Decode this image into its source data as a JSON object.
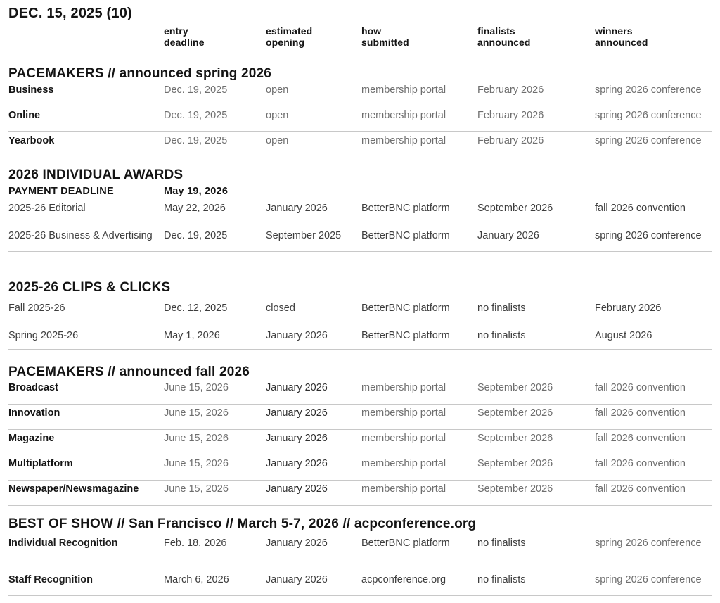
{
  "meta": {
    "title": "DEC. 15, 2025 (10)"
  },
  "header": {
    "columns": [
      {
        "label": "entry\ndeadline"
      },
      {
        "label": "estimated\nopening"
      },
      {
        "label": "how\nsubmitted"
      },
      {
        "label": "finalists\nannounced"
      },
      {
        "label": "winners\nannounced"
      }
    ]
  },
  "sections": [
    {
      "heading": "PACEMAKERS // announced spring 2026",
      "rows": [
        {
          "label": "Business",
          "entry_deadline": "Dec. 19, 2025",
          "estimated_opening": "open",
          "how_submitted": "membership portal",
          "finalists_announced": "February 2026",
          "winners_announced": "spring 2026 conference"
        },
        {
          "label": "Online",
          "entry_deadline": "Dec. 19, 2025",
          "estimated_opening": "open",
          "how_submitted": "membership portal",
          "finalists_announced": "February 2026",
          "winners_announced": "spring 2026 conference"
        },
        {
          "label": "Yearbook",
          "entry_deadline": "Dec. 19, 2025",
          "estimated_opening": "open",
          "how_submitted": "membership portal",
          "finalists_announced": "February 2026",
          "winners_announced": "spring 2026 conference"
        }
      ]
    },
    {
      "heading": "2026 INDIVIDUAL AWARDS",
      "payment_label": "PAYMENT DEADLINE",
      "payment_value": "May 19, 2026",
      "rows": [
        {
          "label": "2025-26  Editorial",
          "entry_deadline": "May 22, 2026",
          "estimated_opening": "January 2026",
          "how_submitted": "BetterBNC platform",
          "finalists_announced": "September 2026",
          "winners_announced": "fall 2026 convention"
        },
        {
          "label": "2025-26 Business & Advertising",
          "entry_deadline": "Dec. 19, 2025",
          "estimated_opening": "September 2025",
          "how_submitted": "BetterBNC platform",
          "finalists_announced": "January 2026",
          "winners_announced": "spring 2026 conference"
        }
      ]
    },
    {
      "heading": "2025-26 CLIPS & CLICKS",
      "rows": [
        {
          "label": "Fall 2025-26",
          "entry_deadline": "Dec. 12, 2025",
          "estimated_opening": "closed",
          "how_submitted": "BetterBNC platform",
          "finalists_announced": "no finalists",
          "winners_announced": "February 2026"
        },
        {
          "label": "Spring 2025-26",
          "entry_deadline": "May 1, 2026",
          "estimated_opening": "January 2026",
          "how_submitted": "BetterBNC platform",
          "finalists_announced": "no finalists",
          "winners_announced": "August 2026"
        }
      ]
    },
    {
      "heading": "PACEMAKERS // announced fall 2026",
      "rows": [
        {
          "label": "Broadcast",
          "entry_deadline": "June 15, 2026",
          "estimated_opening": "January 2026",
          "how_submitted": "membership portal",
          "finalists_announced": "September 2026",
          "winners_announced": "fall 2026 convention"
        },
        {
          "label": "Innovation",
          "entry_deadline": "June 15, 2026",
          "estimated_opening": "January 2026",
          "how_submitted": "membership portal",
          "finalists_announced": "September 2026",
          "winners_announced": "fall 2026 convention"
        },
        {
          "label": "Magazine",
          "entry_deadline": "June 15, 2026",
          "estimated_opening": "January 2026",
          "how_submitted": "membership portal",
          "finalists_announced": "September 2026",
          "winners_announced": "fall 2026 convention"
        },
        {
          "label": "Multiplatform",
          "entry_deadline": "June 15, 2026",
          "estimated_opening": "January 2026",
          "how_submitted": "membership portal",
          "finalists_announced": "September 2026",
          "winners_announced": "fall 2026 convention"
        },
        {
          "label": "Newspaper/Newsmagazine",
          "entry_deadline": "June 15, 2026",
          "estimated_opening": "January 2026",
          "how_submitted": "membership portal",
          "finalists_announced": "September 2026",
          "winners_announced": "fall 2026 convention"
        }
      ]
    },
    {
      "heading": "BEST OF SHOW // San Francisco // March 5-7, 2026 // acpconference.org",
      "rows": [
        {
          "label": "Individual Recognition",
          "entry_deadline": "Feb. 18, 2026",
          "estimated_opening": "January 2026",
          "how_submitted": "BetterBNC platform",
          "finalists_announced": "no finalists",
          "winners_announced": "spring 2026 conference"
        },
        {
          "label": "Staff Recognition",
          "entry_deadline": "March 6, 2026",
          "estimated_opening": "January 2026",
          "how_submitted": "acpconference.org",
          "finalists_announced": "no finalists",
          "winners_announced": "spring 2026 conference"
        }
      ]
    }
  ],
  "colors": {
    "heading": "#141414",
    "dark": "#3d3d3d",
    "gray": "#6e6e6e",
    "divider": "#c8c8c8"
  }
}
